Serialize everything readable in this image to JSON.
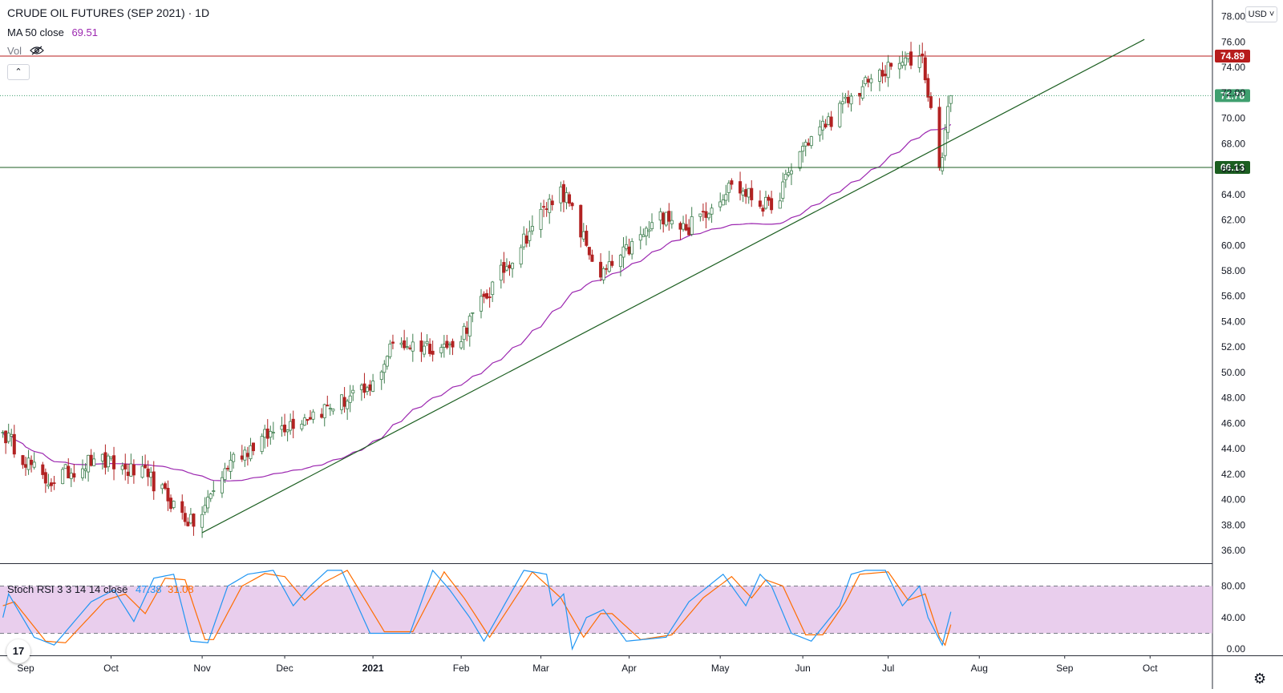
{
  "header": {
    "title": "CRUDE OIL FUTURES (SEP 2021) · 1D",
    "ma_label": "MA 50 close",
    "ma_value": "69.51",
    "vol_label": "Vol",
    "currency": "USD"
  },
  "stoch_legend": {
    "label": "Stoch RSI 3 3 14 14 close",
    "k_value": "47.38",
    "d_value": "31.08"
  },
  "colors": {
    "up": "#26a69a",
    "up_body": "#3f7f4f",
    "down": "#b22222",
    "ma": "#9c27b0",
    "k_line": "#2196f3",
    "d_line": "#ff6d00",
    "band_fill": "#e1bee7",
    "resistance": "#b71c1c",
    "support": "#1b5e20",
    "last_price": "#3f9f6f"
  },
  "chart_data": [
    {
      "type": "candlestick",
      "title": "CRUDE OIL FUTURES (SEP 2021) · 1D",
      "y_axis_ticks": [
        "36.00",
        "38.00",
        "40.00",
        "42.00",
        "44.00",
        "46.00",
        "48.00",
        "50.00",
        "52.00",
        "54.00",
        "56.00",
        "58.00",
        "60.00",
        "62.00",
        "64.00",
        "66.00",
        "68.00",
        "70.00",
        "72.00",
        "74.00",
        "76.00",
        "78.00"
      ],
      "ylim": [
        35.0,
        79.3
      ],
      "x_axis_ticks": [
        "Sep",
        "Oct",
        "Nov",
        "Dec",
        "2021",
        "Feb",
        "Mar",
        "Apr",
        "May",
        "Jun",
        "Jul",
        "Aug",
        "Sep",
        "Oct"
      ],
      "x_tick_dates": [
        "2020-09-01",
        "2020-10-01",
        "2020-11-02",
        "2020-12-01",
        "2021-01-01",
        "2021-02-01",
        "2021-03-01",
        "2021-04-01",
        "2021-05-03",
        "2021-06-01",
        "2021-07-01",
        "2021-08-02",
        "2021-09-01",
        "2021-10-01"
      ],
      "anchors": [
        {
          "date": "2020-08-24",
          "close": 45.3
        },
        {
          "date": "2020-09-08",
          "close": 41.3
        },
        {
          "date": "2020-09-25",
          "close": 43.2
        },
        {
          "date": "2020-10-14",
          "close": 41.8
        },
        {
          "date": "2020-10-30",
          "close": 37.9
        },
        {
          "date": "2020-11-12",
          "close": 43.1
        },
        {
          "date": "2020-11-30",
          "close": 45.8
        },
        {
          "date": "2020-12-31",
          "close": 48.6
        },
        {
          "date": "2021-01-08",
          "close": 52.3
        },
        {
          "date": "2021-01-29",
          "close": 52.0
        },
        {
          "date": "2021-02-26",
          "close": 61.5
        },
        {
          "date": "2021-03-08",
          "close": 64.6
        },
        {
          "date": "2021-03-22",
          "close": 57.5
        },
        {
          "date": "2021-04-14",
          "close": 62.6
        },
        {
          "date": "2021-04-21",
          "close": 61.2
        },
        {
          "date": "2021-05-07",
          "close": 64.8
        },
        {
          "date": "2021-05-21",
          "close": 62.8
        },
        {
          "date": "2021-06-01",
          "close": 67.8
        },
        {
          "date": "2021-06-25",
          "close": 73.1
        },
        {
          "date": "2021-07-06",
          "close": 74.4
        },
        {
          "date": "2021-07-13",
          "close": 74.9
        },
        {
          "date": "2021-07-19",
          "close": 66.1
        },
        {
          "date": "2021-07-23",
          "close": 71.8
        }
      ],
      "last_close": 71.78,
      "ma_50_last": 69.51,
      "horizontal_levels": [
        {
          "value": 74.89,
          "label": "74.89",
          "color": "#b71c1c"
        },
        {
          "value": 66.13,
          "label": "66.13",
          "color": "#1b5e20"
        }
      ],
      "last_price_label": "71.78",
      "trendline": {
        "start": {
          "date": "2020-11-02",
          "value": 37.4
        },
        "end": {
          "date": "2021-09-29",
          "value": 76.2
        }
      }
    },
    {
      "type": "line",
      "name": "Stoch RSI 3 3 14 14 close",
      "y_axis_ticks": [
        "0.00",
        "40.00",
        "80.00"
      ],
      "ylim": [
        -8,
        108
      ],
      "band": [
        20,
        80
      ],
      "anchors_k": [
        {
          "date": "2020-08-24",
          "value": 40
        },
        {
          "date": "2020-08-26",
          "value": 70
        },
        {
          "date": "2020-09-04",
          "value": 15
        },
        {
          "date": "2020-09-11",
          "value": 5
        },
        {
          "date": "2020-09-24",
          "value": 60
        },
        {
          "date": "2020-10-02",
          "value": 75
        },
        {
          "date": "2020-10-09",
          "value": 35
        },
        {
          "date": "2020-10-16",
          "value": 90
        },
        {
          "date": "2020-10-23",
          "value": 95
        },
        {
          "date": "2020-10-29",
          "value": 10
        },
        {
          "date": "2020-11-04",
          "value": 8
        },
        {
          "date": "2020-11-11",
          "value": 80
        },
        {
          "date": "2020-11-18",
          "value": 95
        },
        {
          "date": "2020-11-27",
          "value": 100
        },
        {
          "date": "2020-12-04",
          "value": 55
        },
        {
          "date": "2020-12-10",
          "value": 80
        },
        {
          "date": "2020-12-16",
          "value": 100
        },
        {
          "date": "2020-12-21",
          "value": 100
        },
        {
          "date": "2020-12-31",
          "value": 20
        },
        {
          "date": "2021-01-14",
          "value": 20
        },
        {
          "date": "2021-01-22",
          "value": 100
        },
        {
          "date": "2021-01-28",
          "value": 75
        },
        {
          "date": "2021-02-04",
          "value": 40
        },
        {
          "date": "2021-02-09",
          "value": 10
        },
        {
          "date": "2021-02-23",
          "value": 100
        },
        {
          "date": "2021-03-03",
          "value": 95
        },
        {
          "date": "2021-03-05",
          "value": 55
        },
        {
          "date": "2021-03-09",
          "value": 70
        },
        {
          "date": "2021-03-12",
          "value": 0
        },
        {
          "date": "2021-03-17",
          "value": 40
        },
        {
          "date": "2021-03-23",
          "value": 50
        },
        {
          "date": "2021-03-31",
          "value": 10
        },
        {
          "date": "2021-04-14",
          "value": 15
        },
        {
          "date": "2021-04-22",
          "value": 60
        },
        {
          "date": "2021-05-04",
          "value": 95
        },
        {
          "date": "2021-05-12",
          "value": 55
        },
        {
          "date": "2021-05-17",
          "value": 95
        },
        {
          "date": "2021-05-21",
          "value": 80
        },
        {
          "date": "2021-05-28",
          "value": 20
        },
        {
          "date": "2021-06-04",
          "value": 10
        },
        {
          "date": "2021-06-14",
          "value": 55
        },
        {
          "date": "2021-06-18",
          "value": 95
        },
        {
          "date": "2021-06-23",
          "value": 100
        },
        {
          "date": "2021-06-30",
          "value": 100
        },
        {
          "date": "2021-07-06",
          "value": 55
        },
        {
          "date": "2021-07-12",
          "value": 80
        },
        {
          "date": "2021-07-15",
          "value": 40
        },
        {
          "date": "2021-07-20",
          "value": 5
        },
        {
          "date": "2021-07-23",
          "value": 47.38
        }
      ],
      "anchors_d": [
        {
          "date": "2020-08-24",
          "value": 55
        },
        {
          "date": "2020-08-28",
          "value": 60
        },
        {
          "date": "2020-09-08",
          "value": 10
        },
        {
          "date": "2020-09-15",
          "value": 8
        },
        {
          "date": "2020-09-29",
          "value": 62
        },
        {
          "date": "2020-10-06",
          "value": 70
        },
        {
          "date": "2020-10-13",
          "value": 45
        },
        {
          "date": "2020-10-20",
          "value": 90
        },
        {
          "date": "2020-10-27",
          "value": 88
        },
        {
          "date": "2020-11-03",
          "value": 12
        },
        {
          "date": "2020-11-06",
          "value": 12
        },
        {
          "date": "2020-11-16",
          "value": 80
        },
        {
          "date": "2020-11-24",
          "value": 96
        },
        {
          "date": "2020-12-01",
          "value": 92
        },
        {
          "date": "2020-12-08",
          "value": 62
        },
        {
          "date": "2020-12-15",
          "value": 85
        },
        {
          "date": "2020-12-23",
          "value": 100
        },
        {
          "date": "2021-01-05",
          "value": 22
        },
        {
          "date": "2021-01-15",
          "value": 22
        },
        {
          "date": "2021-01-26",
          "value": 98
        },
        {
          "date": "2021-02-02",
          "value": 65
        },
        {
          "date": "2021-02-11",
          "value": 15
        },
        {
          "date": "2021-02-26",
          "value": 98
        },
        {
          "date": "2021-03-08",
          "value": 65
        },
        {
          "date": "2021-03-16",
          "value": 15
        },
        {
          "date": "2021-03-22",
          "value": 45
        },
        {
          "date": "2021-03-26",
          "value": 45
        },
        {
          "date": "2021-04-05",
          "value": 12
        },
        {
          "date": "2021-04-16",
          "value": 18
        },
        {
          "date": "2021-04-27",
          "value": 65
        },
        {
          "date": "2021-05-07",
          "value": 92
        },
        {
          "date": "2021-05-14",
          "value": 65
        },
        {
          "date": "2021-05-19",
          "value": 88
        },
        {
          "date": "2021-05-25",
          "value": 80
        },
        {
          "date": "2021-06-02",
          "value": 18
        },
        {
          "date": "2021-06-08",
          "value": 18
        },
        {
          "date": "2021-06-16",
          "value": 60
        },
        {
          "date": "2021-06-21",
          "value": 95
        },
        {
          "date": "2021-07-01",
          "value": 98
        },
        {
          "date": "2021-07-08",
          "value": 62
        },
        {
          "date": "2021-07-14",
          "value": 70
        },
        {
          "date": "2021-07-19",
          "value": 15
        },
        {
          "date": "2021-07-21",
          "value": 5
        },
        {
          "date": "2021-07-23",
          "value": 31.08
        }
      ]
    }
  ]
}
